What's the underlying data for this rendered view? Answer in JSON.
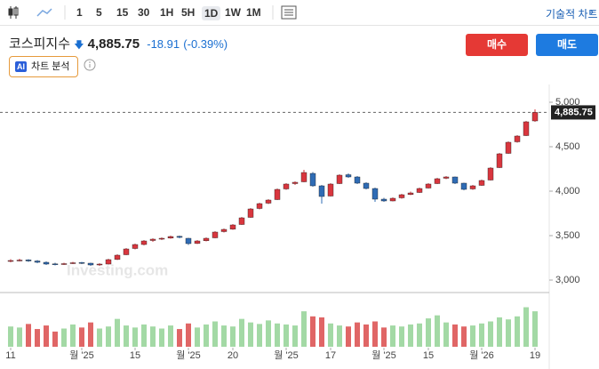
{
  "toolbar": {
    "intervals": [
      "1",
      "5",
      "15",
      "30",
      "1H",
      "5H",
      "1D",
      "1W",
      "1M"
    ],
    "active": "1D",
    "technical": "기술적 차트"
  },
  "header": {
    "name": "코스피지수",
    "price": "4,885.75",
    "change": "-18.91",
    "change_pct": "(-0.39%)",
    "buy": "매수",
    "sell": "매도",
    "ai_badge": "AI",
    "ai_label": "차트 분석"
  },
  "chart_data": {
    "type": "candlestick",
    "watermark": "Investing.com",
    "up_color": "#d9363e",
    "down_color": "#2f6cb5",
    "volume_up_color": "#a3d9a5",
    "volume_down_color": "#e06666",
    "ylim": [
      2870,
      5150
    ],
    "yticks": [
      {
        "value": 3000,
        "label": "3,000"
      },
      {
        "value": 3500,
        "label": "3,500"
      },
      {
        "value": 4000,
        "label": "4,000"
      },
      {
        "value": 4500,
        "label": "4,500"
      },
      {
        "value": 5000,
        "label": "5,000"
      }
    ],
    "last_price": {
      "value": 4885.75,
      "label": "4,885.75"
    },
    "xticks": [
      {
        "value": 0,
        "label": "11"
      },
      {
        "value": 8,
        "label": "월 '25"
      },
      {
        "value": 14,
        "label": "15"
      },
      {
        "value": 20,
        "label": "월 '25"
      },
      {
        "value": 25,
        "label": "20"
      },
      {
        "value": 31,
        "label": "월 '25"
      },
      {
        "value": 36,
        "label": "17"
      },
      {
        "value": 42,
        "label": "월 '25"
      },
      {
        "value": 47,
        "label": "15"
      },
      {
        "value": 53,
        "label": "월 '26"
      },
      {
        "value": 59,
        "label": "19"
      }
    ],
    "ohlc": [
      [
        3210,
        3235,
        3200,
        3220
      ],
      [
        3220,
        3240,
        3210,
        3225
      ],
      [
        3228,
        3235,
        3205,
        3215
      ],
      [
        3215,
        3225,
        3190,
        3200
      ],
      [
        3200,
        3210,
        3170,
        3180
      ],
      [
        3182,
        3195,
        3165,
        3175
      ],
      [
        3175,
        3195,
        3170,
        3185
      ],
      [
        3185,
        3205,
        3180,
        3195
      ],
      [
        3198,
        3205,
        3180,
        3190
      ],
      [
        3190,
        3195,
        3160,
        3170
      ],
      [
        3170,
        3190,
        3160,
        3180
      ],
      [
        3180,
        3240,
        3175,
        3230
      ],
      [
        3232,
        3290,
        3225,
        3280
      ],
      [
        3285,
        3360,
        3280,
        3350
      ],
      [
        3355,
        3410,
        3345,
        3400
      ],
      [
        3400,
        3450,
        3390,
        3440
      ],
      [
        3445,
        3470,
        3430,
        3460
      ],
      [
        3462,
        3480,
        3450,
        3470
      ],
      [
        3472,
        3500,
        3465,
        3490
      ],
      [
        3492,
        3500,
        3470,
        3480
      ],
      [
        3470,
        3475,
        3395,
        3410
      ],
      [
        3412,
        3450,
        3405,
        3440
      ],
      [
        3442,
        3480,
        3435,
        3470
      ],
      [
        3475,
        3550,
        3470,
        3540
      ],
      [
        3545,
        3580,
        3535,
        3570
      ],
      [
        3572,
        3630,
        3565,
        3620
      ],
      [
        3625,
        3710,
        3620,
        3700
      ],
      [
        3705,
        3810,
        3700,
        3800
      ],
      [
        3805,
        3870,
        3795,
        3860
      ],
      [
        3865,
        3910,
        3855,
        3900
      ],
      [
        3905,
        4030,
        3900,
        4020
      ],
      [
        4025,
        4090,
        4015,
        4080
      ],
      [
        4085,
        4110,
        4070,
        4100
      ],
      [
        4105,
        4240,
        4100,
        4210
      ],
      [
        4200,
        4215,
        4050,
        4060
      ],
      [
        4060,
        4070,
        3860,
        3940
      ],
      [
        3945,
        4090,
        3940,
        4080
      ],
      [
        4085,
        4190,
        4080,
        4180
      ],
      [
        4185,
        4200,
        4150,
        4160
      ],
      [
        4160,
        4170,
        4080,
        4090
      ],
      [
        4090,
        4100,
        4020,
        4030
      ],
      [
        4030,
        4040,
        3880,
        3910
      ],
      [
        3910,
        3925,
        3880,
        3890
      ],
      [
        3890,
        3930,
        3885,
        3920
      ],
      [
        3925,
        3970,
        3915,
        3960
      ],
      [
        3962,
        3995,
        3955,
        3980
      ],
      [
        3985,
        4040,
        3980,
        4030
      ],
      [
        4035,
        4090,
        4030,
        4080
      ],
      [
        4085,
        4150,
        4080,
        4140
      ],
      [
        4145,
        4170,
        4135,
        4160
      ],
      [
        4160,
        4165,
        4080,
        4090
      ],
      [
        4090,
        4095,
        4010,
        4020
      ],
      [
        4025,
        4070,
        4015,
        4060
      ],
      [
        4065,
        4130,
        4060,
        4120
      ],
      [
        4125,
        4270,
        4120,
        4260
      ],
      [
        4265,
        4430,
        4260,
        4420
      ],
      [
        4425,
        4560,
        4420,
        4550
      ],
      [
        4555,
        4630,
        4545,
        4620
      ],
      [
        4625,
        4790,
        4620,
        4780
      ],
      [
        4790,
        4920,
        4780,
        4885.75
      ]
    ],
    "vlim": [
      0,
      100
    ],
    "volume": [
      40,
      38,
      45,
      35,
      42,
      30,
      36,
      44,
      38,
      48,
      36,
      40,
      55,
      42,
      38,
      44,
      40,
      36,
      42,
      35,
      46,
      38,
      44,
      50,
      42,
      40,
      55,
      48,
      45,
      52,
      46,
      44,
      42,
      70,
      60,
      58,
      46,
      42,
      40,
      48,
      44,
      50,
      38,
      42,
      40,
      44,
      46,
      56,
      62,
      48,
      44,
      40,
      42,
      46,
      50,
      58,
      54,
      60,
      78,
      70
    ]
  }
}
